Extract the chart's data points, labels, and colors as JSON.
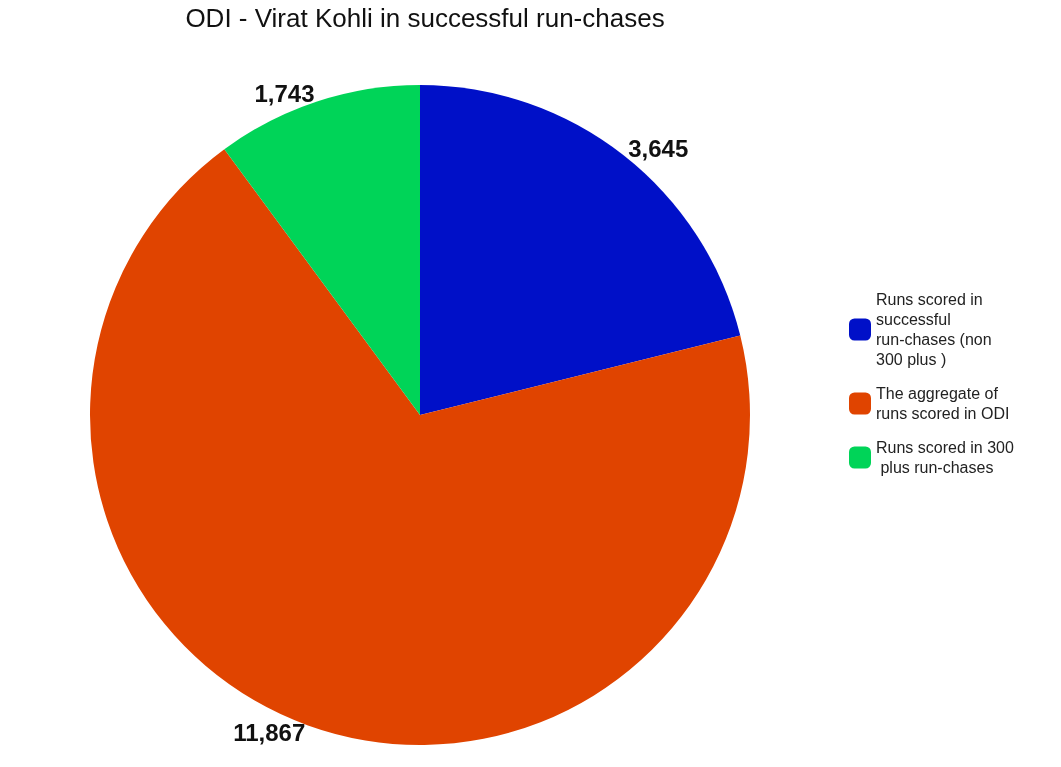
{
  "chart_data": {
    "type": "pie",
    "title": "ODI - Virat Kohli in successful run-chases",
    "categories": [
      "Runs scored in successful run-chases (non 300 plus )",
      "The aggregate of runs scored in ODI",
      "Runs scored in 300 plus run-chases"
    ],
    "values": [
      3645,
      11867,
      1743
    ],
    "colors": [
      "#0010c8",
      "#e04400",
      "#00d458"
    ],
    "value_labels": [
      "3,645",
      "11,867",
      "1,743"
    ],
    "legend": "right"
  }
}
